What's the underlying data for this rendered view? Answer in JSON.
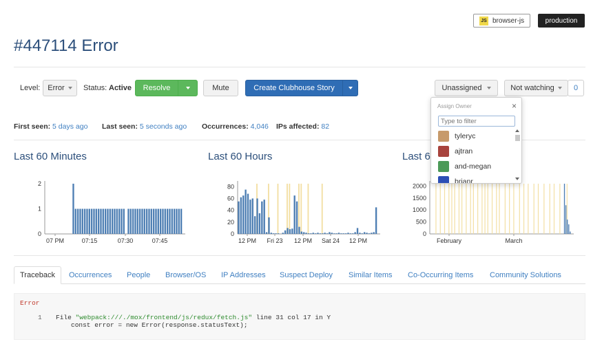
{
  "header": {
    "browser_badge_icon": "JS",
    "browser_badge_label": "browser-js",
    "env_badge": "production",
    "title": "#447114 Error"
  },
  "toolbar": {
    "level_label": "Level:",
    "level_value": "Error",
    "status_label": "Status:",
    "status_value": "Active",
    "resolve_label": "Resolve",
    "mute_label": "Mute",
    "clubhouse_label": "Create Clubhouse Story",
    "assign_value": "Unassigned",
    "watch_value": "Not watching",
    "watch_count": "0"
  },
  "stats": {
    "first_seen_label": "First seen:",
    "first_seen_value": "5 days ago",
    "last_seen_label": "Last seen:",
    "last_seen_value": "5 seconds ago",
    "occurrences_label": "Occurrences:",
    "occurrences_value": "4,046",
    "ips_label": "IPs affected:",
    "ips_value": "82"
  },
  "dropdown": {
    "title": "Assign Owner",
    "close_glyph": "×",
    "filter_placeholder": "Type to filter",
    "owners": [
      "tyleryc",
      "ajtran",
      "and-megan",
      "brianr"
    ],
    "avatar_colors": [
      "#c79a6b",
      "#a8433d",
      "#4c9a58",
      "#2d4fb5"
    ]
  },
  "chart_data": [
    {
      "type": "bar",
      "title": "Last 60 Minutes",
      "yticks": [
        "0",
        "1",
        "2"
      ],
      "ylim": [
        0,
        2
      ],
      "xticks": [
        "07 PM",
        "07:15",
        "07:30",
        "07:45"
      ],
      "values": [
        0,
        0,
        0,
        0,
        0,
        0,
        0,
        0,
        0,
        0,
        0,
        0,
        2,
        1,
        1,
        1,
        1,
        1,
        1,
        1,
        1,
        1,
        1,
        1,
        1,
        1,
        1,
        1,
        1,
        1,
        1,
        1,
        1,
        1,
        1,
        0,
        1,
        1,
        1,
        1,
        1,
        1,
        1,
        1,
        1,
        1,
        1,
        1,
        1,
        1,
        1,
        1,
        1,
        1,
        1,
        1,
        1,
        1,
        1,
        1
      ]
    },
    {
      "type": "bar",
      "title": "Last 60 Hours",
      "yticks": [
        "0",
        "20",
        "40",
        "60",
        "80"
      ],
      "ylim": [
        0,
        85
      ],
      "xticks": [
        "12 PM",
        "Fri 23",
        "12 PM",
        "Sat 24",
        "12 PM"
      ],
      "values": [
        55,
        62,
        65,
        75,
        68,
        58,
        60,
        30,
        60,
        35,
        55,
        58,
        3,
        28,
        2,
        1,
        1,
        1,
        0,
        2,
        6,
        10,
        8,
        9,
        65,
        55,
        12,
        4,
        3,
        2,
        1,
        1,
        2,
        1,
        2,
        1,
        1,
        2,
        1,
        3,
        2,
        1,
        1,
        2,
        1,
        1,
        1,
        2,
        1,
        1,
        3,
        10,
        2,
        1,
        3,
        2,
        1,
        2,
        3,
        45
      ],
      "deploy_markers": [
        8,
        13,
        17,
        21,
        22,
        26,
        27,
        30,
        36
      ]
    },
    {
      "type": "bar",
      "title": "Last 6",
      "yticks": [
        "0",
        "500",
        "1000",
        "1500",
        "2000"
      ],
      "ylim": [
        0,
        2100
      ],
      "xticks": [
        "February",
        "March"
      ],
      "values": [
        1,
        1,
        1,
        1,
        1,
        1,
        1,
        1,
        1,
        1,
        1,
        1,
        1,
        1,
        1,
        1,
        1,
        1,
        1,
        1,
        1,
        1,
        1,
        1,
        1,
        1,
        1,
        1,
        1,
        1,
        1,
        1,
        1,
        1,
        1,
        1,
        1,
        1,
        1,
        1,
        1,
        1,
        1,
        1,
        1,
        1,
        1,
        1,
        1,
        1,
        1,
        1,
        1,
        1,
        1,
        1,
        1,
        1,
        1,
        1,
        1,
        1,
        1,
        1,
        1,
        1,
        1,
        1,
        1,
        1,
        1,
        1,
        1,
        1,
        1,
        1,
        1,
        1,
        1,
        1,
        1,
        1,
        1,
        1,
        1,
        1,
        1,
        1,
        1,
        1,
        1,
        1,
        1,
        2100,
        1200,
        600,
        400,
        100
      ],
      "deploy_markers": [
        4,
        7,
        10,
        13,
        15,
        17,
        20,
        22,
        25,
        28,
        30,
        33,
        36,
        38,
        40,
        43,
        46,
        48,
        52,
        55,
        58,
        62,
        65,
        68,
        72,
        75,
        79,
        83,
        86,
        90,
        95
      ]
    }
  ],
  "tabs": [
    "Traceback",
    "Occurrences",
    "People",
    "Browser/OS",
    "IP Addresses",
    "Suspect Deploy",
    "Similar Items",
    "Co-Occurring Items",
    "Community Solutions"
  ],
  "traceback": {
    "error_label": "Error",
    "line_no": "1",
    "file_prefix": "File ",
    "file_path": "\"webpack:///./mox/frontend/js/redux/fetch.js\"",
    "file_suffix": " line 31 col 17 in Y",
    "code": "const error = new Error(response.statusText);"
  }
}
